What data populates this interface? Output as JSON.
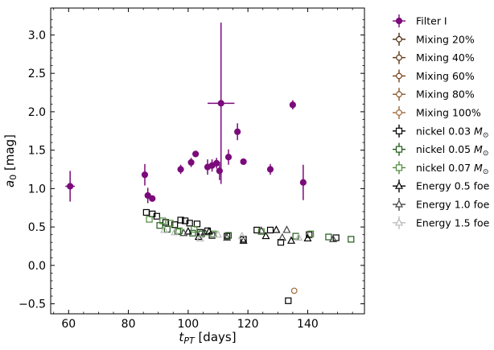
{
  "chart_data": {
    "type": "scatter",
    "title": "",
    "xlabel": "t_PT [days]",
    "ylabel": "a_0 [mag]",
    "xlim": [
      54,
      159
    ],
    "ylim": [
      -0.63,
      3.35
    ],
    "xticks": [
      "60",
      "80",
      "100",
      "120",
      "140"
    ],
    "yticks": [
      "−0.5",
      "0.0",
      "0.5",
      "1.0",
      "1.5",
      "2.0",
      "2.5",
      "3.0"
    ],
    "grid": false,
    "legend_position": "outside-right",
    "series": [
      {
        "name": "Filter I",
        "marker": "circle-filled-errorbar",
        "color": "#7b0a7b",
        "points": [
          {
            "x": 60.5,
            "y": 1.03,
            "yerr": 0.2,
            "xerr": 1.6
          },
          {
            "x": 85.5,
            "y": 1.18,
            "yerr": 0.14
          },
          {
            "x": 86.5,
            "y": 0.91,
            "yerr": 0.1
          },
          {
            "x": 88.0,
            "y": 0.87,
            "yerr": 0.04
          },
          {
            "x": 97.5,
            "y": 1.25,
            "yerr": 0.06
          },
          {
            "x": 101.0,
            "y": 1.34,
            "yerr": 0.06
          },
          {
            "x": 102.5,
            "y": 1.45,
            "yerr": 0.04
          },
          {
            "x": 106.5,
            "y": 1.28,
            "yerr": 0.1
          },
          {
            "x": 108.0,
            "y": 1.3,
            "yerr": 0.08
          },
          {
            "x": 109.5,
            "y": 1.33,
            "yerr": 0.07
          },
          {
            "x": 110.5,
            "y": 1.23,
            "yerr": 0.12
          },
          {
            "x": 111.0,
            "y": 2.11,
            "yerr": 1.05,
            "xerr": 4.5
          },
          {
            "x": 113.5,
            "y": 1.41,
            "yerr": 0.1
          },
          {
            "x": 116.5,
            "y": 1.74,
            "yerr": 0.11
          },
          {
            "x": 118.5,
            "y": 1.35,
            "yerr": 0.04
          },
          {
            "x": 127.5,
            "y": 1.25,
            "yerr": 0.07
          },
          {
            "x": 135.0,
            "y": 2.09,
            "yerr": 0.06
          },
          {
            "x": 138.5,
            "y": 1.08,
            "yerr": 0.23
          }
        ]
      },
      {
        "name": "Mixing 20%",
        "marker": "circle-open",
        "color": "#4a2a0a",
        "points": []
      },
      {
        "name": "Mixing 40%",
        "marker": "circle-open",
        "color": "#5e3512",
        "points": []
      },
      {
        "name": "Mixing 60%",
        "marker": "circle-open",
        "color": "#74441c",
        "points": []
      },
      {
        "name": "Mixing 80%",
        "marker": "circle-open",
        "color": "#8a5628",
        "points": []
      },
      {
        "name": "Mixing 100%",
        "marker": "circle-open",
        "color": "#a0693a",
        "points": [
          {
            "x": 135.5,
            "y": -0.33
          }
        ]
      },
      {
        "name": "nickel 0.03 M_sun",
        "marker": "square-open",
        "color": "#000000",
        "points": [
          {
            "x": 86.0,
            "y": 0.69
          },
          {
            "x": 88.0,
            "y": 0.67
          },
          {
            "x": 89.5,
            "y": 0.64
          },
          {
            "x": 92.5,
            "y": 0.56
          },
          {
            "x": 95.5,
            "y": 0.53
          },
          {
            "x": 97.5,
            "y": 0.59
          },
          {
            "x": 99.0,
            "y": 0.58
          },
          {
            "x": 100.5,
            "y": 0.55
          },
          {
            "x": 103.0,
            "y": 0.54
          },
          {
            "x": 104.0,
            "y": 0.43
          },
          {
            "x": 106.5,
            "y": 0.45
          },
          {
            "x": 108.0,
            "y": 0.39
          },
          {
            "x": 113.0,
            "y": 0.38
          },
          {
            "x": 118.5,
            "y": 0.34
          },
          {
            "x": 123.0,
            "y": 0.46
          },
          {
            "x": 127.5,
            "y": 0.46
          },
          {
            "x": 131.0,
            "y": 0.3
          },
          {
            "x": 133.5,
            "y": -0.46
          },
          {
            "x": 140.5,
            "y": 0.4
          },
          {
            "x": 149.5,
            "y": 0.36
          }
        ]
      },
      {
        "name": "nickel 0.05 M_sun",
        "marker": "square-open",
        "color": "#1e5a16",
        "points": [
          {
            "x": 90.5,
            "y": 0.52
          },
          {
            "x": 93.0,
            "y": 0.47
          },
          {
            "x": 96.5,
            "y": 0.44
          },
          {
            "x": 101.5,
            "y": 0.42
          },
          {
            "x": 104.5,
            "y": 0.41
          },
          {
            "x": 113.5,
            "y": 0.39
          },
          {
            "x": 136.0,
            "y": 0.38
          },
          {
            "x": 147.0,
            "y": 0.37
          },
          {
            "x": 154.5,
            "y": 0.34
          }
        ]
      },
      {
        "name": "nickel 0.07 M_sun",
        "marker": "square-open",
        "color": "#4e8a3a",
        "points": [
          {
            "x": 87.0,
            "y": 0.6
          },
          {
            "x": 91.5,
            "y": 0.58
          },
          {
            "x": 94.0,
            "y": 0.55
          },
          {
            "x": 97.0,
            "y": 0.45
          },
          {
            "x": 102.0,
            "y": 0.47
          },
          {
            "x": 108.5,
            "y": 0.41
          },
          {
            "x": 124.5,
            "y": 0.44
          },
          {
            "x": 141.0,
            "y": 0.41
          }
        ]
      },
      {
        "name": "Energy 0.5 foe",
        "marker": "triangle-open",
        "color": "#000000",
        "points": [
          {
            "x": 100.0,
            "y": 0.44
          },
          {
            "x": 103.5,
            "y": 0.37
          },
          {
            "x": 107.0,
            "y": 0.44
          },
          {
            "x": 118.5,
            "y": 0.32
          },
          {
            "x": 126.0,
            "y": 0.38
          },
          {
            "x": 129.5,
            "y": 0.46
          },
          {
            "x": 134.5,
            "y": 0.32
          },
          {
            "x": 140.0,
            "y": 0.35
          }
        ]
      },
      {
        "name": "Energy 1.0 foe",
        "marker": "triangle-open",
        "color": "#444444",
        "points": [
          {
            "x": 98.5,
            "y": 0.42
          },
          {
            "x": 105.5,
            "y": 0.43
          },
          {
            "x": 113.0,
            "y": 0.36
          },
          {
            "x": 124.5,
            "y": 0.45
          },
          {
            "x": 131.5,
            "y": 0.36
          },
          {
            "x": 133.0,
            "y": 0.46
          },
          {
            "x": 148.5,
            "y": 0.34
          }
        ]
      },
      {
        "name": "Energy 1.5 foe",
        "marker": "triangle-open",
        "color": "#bbbbbb",
        "points": [
          {
            "x": 92.0,
            "y": 0.46
          },
          {
            "x": 95.5,
            "y": 0.43
          },
          {
            "x": 104.0,
            "y": 0.35
          },
          {
            "x": 110.0,
            "y": 0.4
          },
          {
            "x": 118.0,
            "y": 0.38
          },
          {
            "x": 137.0,
            "y": 0.36
          }
        ]
      }
    ]
  }
}
